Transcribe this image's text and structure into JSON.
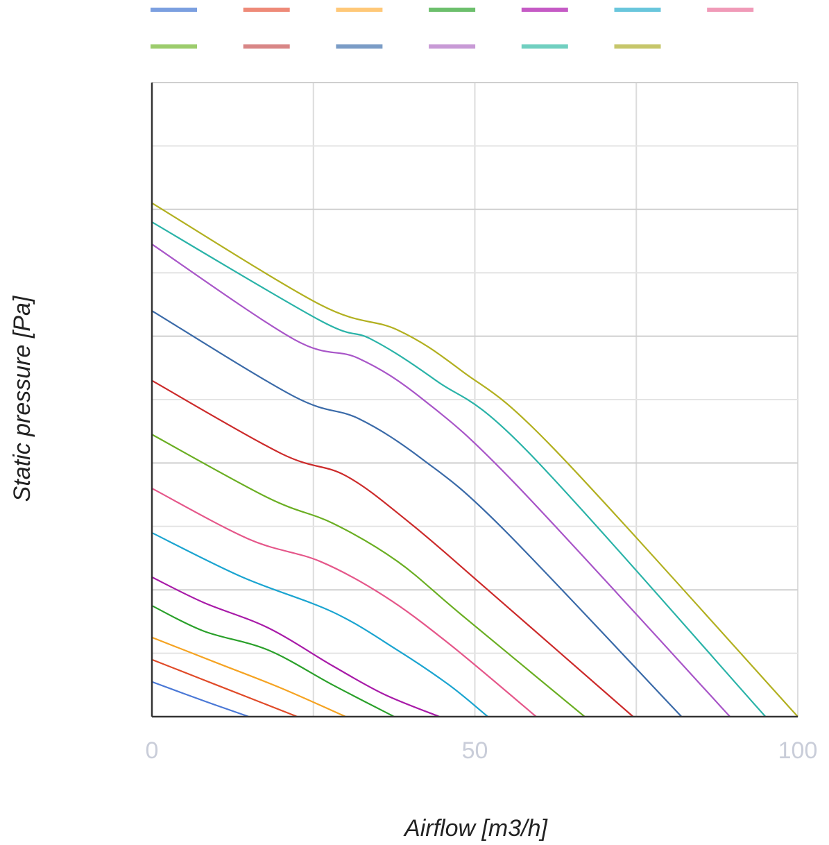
{
  "chart_data": {
    "type": "line",
    "title": "",
    "xlabel": "Airflow [m3/h]",
    "ylabel": "Static pressure [Pa]",
    "xlim": [
      0,
      100
    ],
    "ylim": [
      0,
      100
    ],
    "x_ticks": [
      "0",
      "50",
      "100"
    ],
    "grid": true,
    "legend": "top",
    "series": [
      {
        "color": "#4a78d6",
        "points": [
          [
            0,
            5.5
          ],
          [
            8,
            2.5
          ],
          [
            15,
            0
          ]
        ]
      },
      {
        "color": "#e04a28",
        "points": [
          [
            0,
            9
          ],
          [
            10,
            5
          ],
          [
            22.5,
            0
          ]
        ]
      },
      {
        "color": "#f5a322",
        "points": [
          [
            0,
            12.5
          ],
          [
            10,
            8.5
          ],
          [
            20,
            4.5
          ],
          [
            30,
            0
          ]
        ]
      },
      {
        "color": "#2aa02a",
        "points": [
          [
            0,
            17.5
          ],
          [
            8,
            13.5
          ],
          [
            18,
            10.5
          ],
          [
            28,
            5
          ],
          [
            37.5,
            0
          ]
        ]
      },
      {
        "color": "#a81aa8",
        "points": [
          [
            0,
            22
          ],
          [
            8,
            18
          ],
          [
            18,
            14
          ],
          [
            28,
            8
          ],
          [
            36,
            3.5
          ],
          [
            44.5,
            0
          ]
        ]
      },
      {
        "color": "#1aa4d0",
        "points": [
          [
            0,
            29
          ],
          [
            14,
            22
          ],
          [
            28,
            16.5
          ],
          [
            38,
            10.5
          ],
          [
            46,
            5
          ],
          [
            52,
            0
          ]
        ]
      },
      {
        "color": "#e5578a",
        "points": [
          [
            0,
            36
          ],
          [
            15,
            28
          ],
          [
            26,
            24.5
          ],
          [
            36,
            19
          ],
          [
            46,
            11.5
          ],
          [
            59.5,
            0
          ]
        ]
      },
      {
        "color": "#6aae22",
        "points": [
          [
            0,
            44.5
          ],
          [
            18,
            34.5
          ],
          [
            28,
            30.5
          ],
          [
            38,
            24.5
          ],
          [
            48,
            16
          ],
          [
            67,
            0
          ]
        ]
      },
      {
        "color": "#cc2a2a",
        "points": [
          [
            0,
            53
          ],
          [
            20,
            41.5
          ],
          [
            30,
            38
          ],
          [
            40,
            30.5
          ],
          [
            52,
            20
          ],
          [
            74.5,
            0
          ]
        ]
      },
      {
        "color": "#3a6aa8",
        "points": [
          [
            0,
            64
          ],
          [
            22,
            50.5
          ],
          [
            32,
            47
          ],
          [
            42,
            40.5
          ],
          [
            54,
            30
          ],
          [
            82,
            0
          ]
        ]
      },
      {
        "color": "#a855c8",
        "points": [
          [
            0,
            74.5
          ],
          [
            22,
            59.5
          ],
          [
            32,
            56.5
          ],
          [
            42,
            50
          ],
          [
            56,
            37
          ],
          [
            89.5,
            0
          ]
        ]
      },
      {
        "color": "#2ab3a8",
        "points": [
          [
            0,
            78
          ],
          [
            26,
            62.5
          ],
          [
            34,
            59.5
          ],
          [
            44,
            53
          ],
          [
            58,
            42
          ],
          [
            95,
            0
          ]
        ]
      },
      {
        "color": "#b2b020",
        "points": [
          [
            0,
            81
          ],
          [
            26,
            65
          ],
          [
            38,
            61
          ],
          [
            48,
            54.5
          ],
          [
            62,
            42.5
          ],
          [
            100,
            0
          ]
        ]
      }
    ],
    "legend_colors": [
      "#7b9fe0",
      "#ee8a78",
      "#ffc878",
      "#6cbf6c",
      "#c55ac5",
      "#69c6dc",
      "#f09ab8",
      "#9ccc6c",
      "#d88686",
      "#7a9cc6",
      "#c89ad6",
      "#70cfc0",
      "#c6c66a"
    ]
  }
}
